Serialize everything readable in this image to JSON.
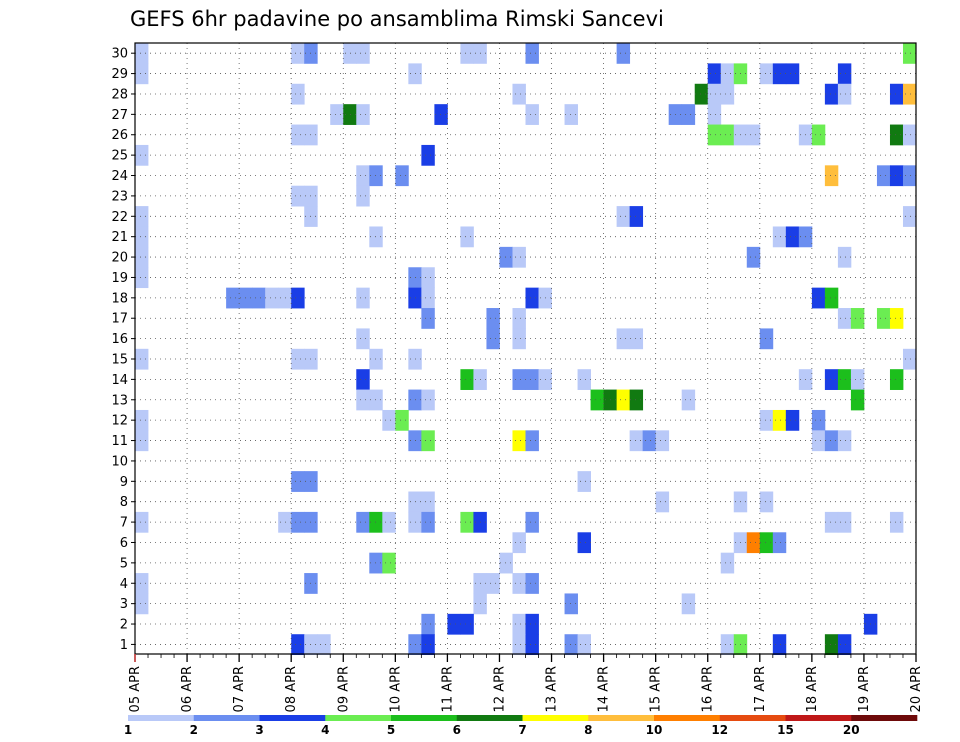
{
  "chart_data": {
    "type": "heatmap",
    "title": "GEFS 6hr padavine po ansamblima Rimski Sancevi",
    "xlabel": "",
    "ylabel": "",
    "x_tick_labels": [
      "05 APR",
      "06 APR",
      "07 APR",
      "08 APR",
      "09 APR",
      "10 APR",
      "11 APR",
      "12 APR",
      "13 APR",
      "14 APR",
      "15 APR",
      "16 APR",
      "17 APR",
      "18 APR",
      "19 APR",
      "20 APR"
    ],
    "x_step_hours": 6,
    "x_steps": 60,
    "y_range": [
      1,
      30
    ],
    "y_ticks": [
      1,
      2,
      3,
      4,
      5,
      6,
      7,
      8,
      9,
      10,
      11,
      12,
      13,
      14,
      15,
      16,
      17,
      18,
      19,
      20,
      21,
      22,
      23,
      24,
      25,
      26,
      27,
      28,
      29,
      30
    ],
    "grid": true,
    "legend": {
      "placement": "bottom",
      "thresholds": [
        1,
        2,
        3,
        4,
        5,
        6,
        7,
        8,
        10,
        12,
        15,
        20
      ],
      "colors": [
        "#b9c9f8",
        "#6b8ef0",
        "#1a3ee6",
        "#6bed52",
        "#1cbf1c",
        "#117a11",
        "#ffff00",
        "#ffbe3c",
        "#ff7f00",
        "#e64b10",
        "#c01818",
        "#6e0a0a"
      ]
    },
    "cells": [
      [
        0,
        30,
        1
      ],
      [
        12,
        30,
        1
      ],
      [
        13,
        30,
        2
      ],
      [
        16,
        30,
        1
      ],
      [
        17,
        30,
        1
      ],
      [
        25,
        30,
        1
      ],
      [
        26,
        30,
        1
      ],
      [
        30,
        30,
        2
      ],
      [
        37,
        30,
        2
      ],
      [
        59,
        30,
        4
      ],
      [
        0,
        29,
        1
      ],
      [
        21,
        29,
        1
      ],
      [
        44,
        29,
        3
      ],
      [
        45,
        29,
        1
      ],
      [
        46,
        29,
        4
      ],
      [
        48,
        29,
        1
      ],
      [
        49,
        29,
        3
      ],
      [
        50,
        29,
        3
      ],
      [
        54,
        29,
        3
      ],
      [
        12,
        28,
        1
      ],
      [
        29,
        28,
        1
      ],
      [
        43,
        28,
        6
      ],
      [
        44,
        28,
        1
      ],
      [
        45,
        28,
        1
      ],
      [
        53,
        28,
        3
      ],
      [
        54,
        28,
        1
      ],
      [
        58,
        28,
        3
      ],
      [
        59,
        28,
        8
      ],
      [
        15,
        27,
        1
      ],
      [
        16,
        27,
        6
      ],
      [
        17,
        27,
        1
      ],
      [
        23,
        27,
        3
      ],
      [
        30,
        27,
        1
      ],
      [
        33,
        27,
        1
      ],
      [
        41,
        27,
        2
      ],
      [
        42,
        27,
        2
      ],
      [
        44,
        27,
        1
      ],
      [
        12,
        26,
        1
      ],
      [
        13,
        26,
        1
      ],
      [
        44,
        26,
        4
      ],
      [
        45,
        26,
        4
      ],
      [
        46,
        26,
        1
      ],
      [
        47,
        26,
        1
      ],
      [
        51,
        26,
        1
      ],
      [
        52,
        26,
        4
      ],
      [
        58,
        26,
        6
      ],
      [
        59,
        26,
        1
      ],
      [
        0,
        25,
        1
      ],
      [
        22,
        25,
        3
      ],
      [
        17,
        24,
        1
      ],
      [
        18,
        24,
        2
      ],
      [
        20,
        24,
        2
      ],
      [
        53,
        24,
        8
      ],
      [
        57,
        24,
        2
      ],
      [
        58,
        24,
        3
      ],
      [
        59,
        24,
        2
      ],
      [
        12,
        23,
        1
      ],
      [
        13,
        23,
        1
      ],
      [
        17,
        23,
        1
      ],
      [
        0,
        22,
        1
      ],
      [
        13,
        22,
        1
      ],
      [
        37,
        22,
        1
      ],
      [
        38,
        22,
        3
      ],
      [
        59,
        22,
        1
      ],
      [
        0,
        21,
        1
      ],
      [
        18,
        21,
        1
      ],
      [
        25,
        21,
        1
      ],
      [
        49,
        21,
        1
      ],
      [
        50,
        21,
        3
      ],
      [
        51,
        21,
        2
      ],
      [
        0,
        20,
        1
      ],
      [
        28,
        20,
        2
      ],
      [
        29,
        20,
        1
      ],
      [
        47,
        20,
        2
      ],
      [
        54,
        20,
        1
      ],
      [
        0,
        19,
        1
      ],
      [
        21,
        19,
        2
      ],
      [
        22,
        19,
        1
      ],
      [
        7,
        18,
        2
      ],
      [
        8,
        18,
        2
      ],
      [
        9,
        18,
        2
      ],
      [
        10,
        18,
        1
      ],
      [
        11,
        18,
        1
      ],
      [
        12,
        18,
        3
      ],
      [
        17,
        18,
        1
      ],
      [
        21,
        18,
        3
      ],
      [
        22,
        18,
        1
      ],
      [
        30,
        18,
        3
      ],
      [
        31,
        18,
        1
      ],
      [
        52,
        18,
        3
      ],
      [
        53,
        18,
        5
      ],
      [
        22,
        17,
        2
      ],
      [
        27,
        17,
        2
      ],
      [
        29,
        17,
        1
      ],
      [
        54,
        17,
        1
      ],
      [
        55,
        17,
        4
      ],
      [
        57,
        17,
        4
      ],
      [
        58,
        17,
        7
      ],
      [
        17,
        16,
        1
      ],
      [
        27,
        16,
        2
      ],
      [
        29,
        16,
        1
      ],
      [
        37,
        16,
        1
      ],
      [
        38,
        16,
        1
      ],
      [
        48,
        16,
        2
      ],
      [
        0,
        15,
        1
      ],
      [
        12,
        15,
        1
      ],
      [
        13,
        15,
        1
      ],
      [
        18,
        15,
        1
      ],
      [
        21,
        15,
        1
      ],
      [
        59,
        15,
        1
      ],
      [
        17,
        14,
        3
      ],
      [
        25,
        14,
        5
      ],
      [
        26,
        14,
        1
      ],
      [
        29,
        14,
        2
      ],
      [
        30,
        14,
        2
      ],
      [
        31,
        14,
        1
      ],
      [
        34,
        14,
        1
      ],
      [
        51,
        14,
        1
      ],
      [
        53,
        14,
        3
      ],
      [
        54,
        14,
        5
      ],
      [
        55,
        14,
        1
      ],
      [
        58,
        14,
        5
      ],
      [
        17,
        13,
        1
      ],
      [
        18,
        13,
        1
      ],
      [
        21,
        13,
        2
      ],
      [
        22,
        13,
        1
      ],
      [
        35,
        13,
        5
      ],
      [
        36,
        13,
        6
      ],
      [
        37,
        13,
        7
      ],
      [
        38,
        13,
        6
      ],
      [
        42,
        13,
        1
      ],
      [
        55,
        13,
        5
      ],
      [
        0,
        12,
        1
      ],
      [
        19,
        12,
        1
      ],
      [
        20,
        12,
        4
      ],
      [
        48,
        12,
        1
      ],
      [
        49,
        12,
        7
      ],
      [
        50,
        12,
        3
      ],
      [
        52,
        12,
        2
      ],
      [
        0,
        11,
        1
      ],
      [
        21,
        11,
        2
      ],
      [
        22,
        11,
        4
      ],
      [
        29,
        11,
        7
      ],
      [
        30,
        11,
        2
      ],
      [
        38,
        11,
        1
      ],
      [
        39,
        11,
        2
      ],
      [
        40,
        11,
        1
      ],
      [
        52,
        11,
        1
      ],
      [
        53,
        11,
        2
      ],
      [
        54,
        11,
        1
      ],
      [
        12,
        9,
        2
      ],
      [
        13,
        9,
        2
      ],
      [
        34,
        9,
        1
      ],
      [
        21,
        8,
        1
      ],
      [
        22,
        8,
        1
      ],
      [
        40,
        8,
        1
      ],
      [
        46,
        8,
        1
      ],
      [
        48,
        8,
        1
      ],
      [
        0,
        7,
        1
      ],
      [
        11,
        7,
        1
      ],
      [
        12,
        7,
        2
      ],
      [
        13,
        7,
        2
      ],
      [
        17,
        7,
        2
      ],
      [
        18,
        7,
        5
      ],
      [
        19,
        7,
        1
      ],
      [
        21,
        7,
        1
      ],
      [
        22,
        7,
        2
      ],
      [
        25,
        7,
        4
      ],
      [
        26,
        7,
        3
      ],
      [
        30,
        7,
        2
      ],
      [
        53,
        7,
        1
      ],
      [
        54,
        7,
        1
      ],
      [
        58,
        7,
        1
      ],
      [
        29,
        6,
        1
      ],
      [
        34,
        6,
        3
      ],
      [
        46,
        6,
        1
      ],
      [
        47,
        6,
        9
      ],
      [
        48,
        6,
        5
      ],
      [
        49,
        6,
        2
      ],
      [
        18,
        5,
        2
      ],
      [
        19,
        5,
        4
      ],
      [
        28,
        5,
        1
      ],
      [
        45,
        5,
        1
      ],
      [
        0,
        4,
        1
      ],
      [
        13,
        4,
        2
      ],
      [
        26,
        4,
        1
      ],
      [
        27,
        4,
        1
      ],
      [
        29,
        4,
        1
      ],
      [
        30,
        4,
        2
      ],
      [
        0,
        3,
        1
      ],
      [
        26,
        3,
        1
      ],
      [
        33,
        3,
        2
      ],
      [
        42,
        3,
        1
      ],
      [
        22,
        2,
        2
      ],
      [
        24,
        2,
        3
      ],
      [
        25,
        2,
        3
      ],
      [
        29,
        2,
        1
      ],
      [
        30,
        2,
        3
      ],
      [
        56,
        2,
        3
      ],
      [
        12,
        1,
        3
      ],
      [
        13,
        1,
        1
      ],
      [
        14,
        1,
        1
      ],
      [
        21,
        1,
        2
      ],
      [
        22,
        1,
        3
      ],
      [
        29,
        1,
        1
      ],
      [
        30,
        1,
        3
      ],
      [
        33,
        1,
        2
      ],
      [
        34,
        1,
        1
      ],
      [
        45,
        1,
        1
      ],
      [
        46,
        1,
        4
      ],
      [
        49,
        1,
        3
      ],
      [
        53,
        1,
        6
      ],
      [
        54,
        1,
        3
      ]
    ]
  }
}
